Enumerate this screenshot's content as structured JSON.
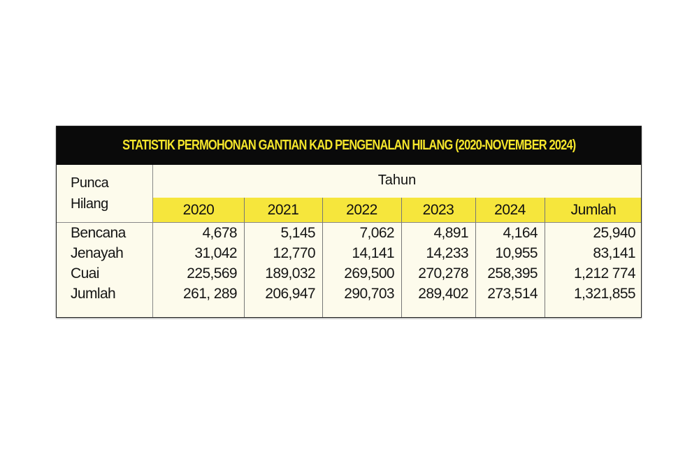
{
  "chart_data": {
    "type": "table",
    "title": "STATISTIK PERMOHONAN GANTIAN KAD PENGENALAN HILANG (2020-NOVEMBER 2024)",
    "row_header": "Punca Hilang",
    "row_header_lines": [
      "Punca",
      "Hilang"
    ],
    "column_group": "Tahun",
    "columns": [
      "2020",
      "2021",
      "2022",
      "2023",
      "2024",
      "Jumlah"
    ],
    "rows": [
      {
        "label": "Bencana",
        "values": [
          "4,678",
          "5,145",
          "7,062",
          "4,891",
          "4,164",
          "25,940"
        ]
      },
      {
        "label": "Jenayah",
        "values": [
          "31,042",
          "12,770",
          "14,141",
          "14,233",
          "10,955",
          "83,141"
        ]
      },
      {
        "label": "Cuai",
        "values": [
          "225,569",
          "189,032",
          "269,500",
          "270,278",
          "258,395",
          "1,212 774"
        ]
      },
      {
        "label": "Jumlah",
        "values": [
          "261, 289",
          "206,947",
          "290,703",
          "289,402",
          "273,514",
          "1,321,855"
        ]
      }
    ],
    "colors": {
      "title_bg": "#0a0a0a",
      "title_text": "#f4e52b",
      "header_yellow": "#f6e63c",
      "body_bg": "#fdfbec"
    }
  }
}
